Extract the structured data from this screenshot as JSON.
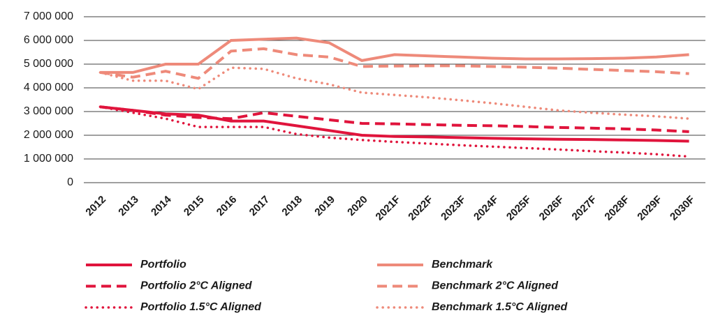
{
  "chart_data": {
    "type": "line",
    "categories": [
      "2012",
      "2013",
      "2014",
      "2015",
      "2016",
      "2017",
      "2018",
      "2019",
      "2020",
      "2021F",
      "2022F",
      "2023F",
      "2024F",
      "2025F",
      "2026F",
      "2027F",
      "2028F",
      "2029F",
      "2030F"
    ],
    "ylim": [
      0,
      7000000
    ],
    "yticks": [
      {
        "value": 0,
        "label": "0"
      },
      {
        "value": 1000000,
        "label": "1 000 000"
      },
      {
        "value": 2000000,
        "label": "2 000 000"
      },
      {
        "value": 3000000,
        "label": "3 000 000"
      },
      {
        "value": 4000000,
        "label": "4 000 000"
      },
      {
        "value": 5000000,
        "label": "5 000 000"
      },
      {
        "value": 6000000,
        "label": "6 000 000"
      },
      {
        "value": 7000000,
        "label": "7 000 000"
      }
    ],
    "grid": true,
    "legend": "bottom",
    "series": [
      {
        "name": "Portfolio",
        "color": "#e0143c",
        "line_style": "solid",
        "values": [
          3200000,
          3050000,
          2900000,
          2850000,
          2600000,
          2600000,
          2400000,
          2200000,
          2000000,
          1950000,
          1930000,
          1900000,
          1870000,
          1850000,
          1830000,
          1820000,
          1800000,
          1780000,
          1750000
        ]
      },
      {
        "name": "Benchmark",
        "color": "#ee8a7a",
        "line_style": "solid",
        "values": [
          4650000,
          4650000,
          5000000,
          5000000,
          6000000,
          6050000,
          6100000,
          5900000,
          5150000,
          5400000,
          5350000,
          5300000,
          5250000,
          5220000,
          5220000,
          5230000,
          5250000,
          5300000,
          5400000
        ]
      },
      {
        "name": "Portfolio 2°C Aligned",
        "color": "#e0143c",
        "line_style": "dashed",
        "values": [
          3200000,
          3050000,
          2850000,
          2750000,
          2700000,
          2950000,
          2800000,
          2650000,
          2500000,
          2480000,
          2450000,
          2420000,
          2400000,
          2370000,
          2330000,
          2300000,
          2270000,
          2220000,
          2150000
        ]
      },
      {
        "name": "Benchmark 2°C Aligned",
        "color": "#ee8a7a",
        "line_style": "dashed",
        "values": [
          4650000,
          4450000,
          4700000,
          4400000,
          5550000,
          5650000,
          5400000,
          5300000,
          4900000,
          4920000,
          4930000,
          4930000,
          4900000,
          4870000,
          4830000,
          4780000,
          4730000,
          4680000,
          4600000
        ]
      },
      {
        "name": "Portfolio 1.5°C Aligned",
        "color": "#e0143c",
        "line_style": "dotted",
        "values": [
          3200000,
          2950000,
          2700000,
          2350000,
          2350000,
          2350000,
          2050000,
          1900000,
          1800000,
          1720000,
          1650000,
          1580000,
          1520000,
          1460000,
          1400000,
          1330000,
          1270000,
          1200000,
          1100000
        ]
      },
      {
        "name": "Benchmark 1.5°C Aligned",
        "color": "#ee8a7a",
        "line_style": "dotted",
        "values": [
          4650000,
          4300000,
          4300000,
          3950000,
          4850000,
          4800000,
          4400000,
          4150000,
          3800000,
          3700000,
          3600000,
          3480000,
          3350000,
          3200000,
          3050000,
          2950000,
          2870000,
          2800000,
          2700000
        ]
      }
    ]
  }
}
